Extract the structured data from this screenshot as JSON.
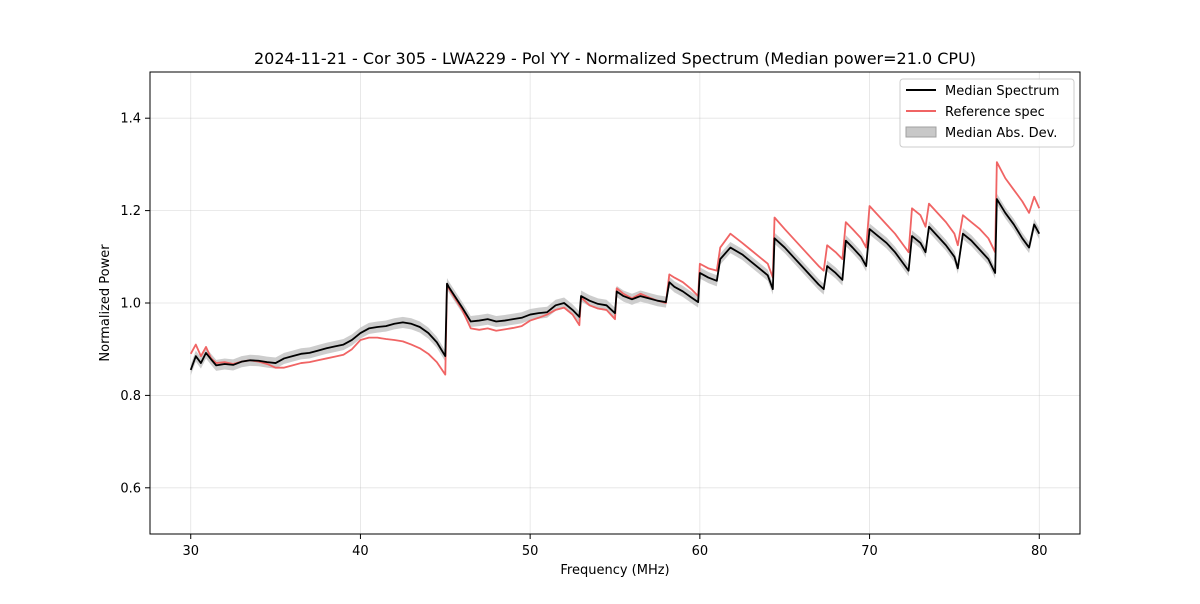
{
  "chart_data": {
    "type": "line",
    "title": "2024-11-21 - Cor 305 - LWA229 - Pol YY - Normalized Spectrum (Median power=21.0 CPU)",
    "xlabel": "Frequency (MHz)",
    "ylabel": "Normalized Power",
    "xlim": [
      27.6,
      82.4
    ],
    "ylim": [
      0.5,
      1.5
    ],
    "xticks": [
      30,
      40,
      50,
      60,
      70,
      80
    ],
    "xtick_labels": [
      "30",
      "40",
      "50",
      "60",
      "70",
      "80"
    ],
    "yticks": [
      0.6,
      0.8,
      1.0,
      1.2,
      1.4
    ],
    "ytick_labels": [
      "0.6",
      "0.8",
      "1.0",
      "1.2",
      "1.4"
    ],
    "grid": true,
    "legend_position": "top-right",
    "legend": [
      {
        "label": "Median Spectrum",
        "kind": "line",
        "color": "#000000"
      },
      {
        "label": "Reference spec",
        "kind": "line",
        "color": "#f06464"
      },
      {
        "label": "Median Abs. Dev.",
        "kind": "band",
        "color": "#c8c8c8"
      }
    ],
    "series": [
      {
        "name": "Median Spectrum",
        "color": "#000000",
        "x": [
          30.0,
          30.3,
          30.6,
          30.9,
          31.2,
          31.5,
          32.0,
          32.5,
          33.0,
          33.5,
          34.0,
          34.5,
          35.0,
          35.5,
          36.0,
          36.5,
          37.0,
          37.5,
          38.0,
          38.5,
          39.0,
          39.5,
          40.0,
          40.5,
          41.0,
          41.5,
          42.0,
          42.5,
          43.0,
          43.5,
          44.0,
          44.5,
          45.0,
          45.1,
          45.2,
          46.0,
          46.5,
          47.0,
          47.5,
          48.0,
          48.5,
          49.0,
          49.5,
          50.0,
          50.5,
          51.0,
          51.5,
          52.0,
          52.5,
          52.9,
          53.0,
          53.5,
          54.0,
          54.5,
          55.0,
          55.1,
          55.5,
          56.0,
          56.5,
          57.0,
          57.5,
          58.0,
          58.2,
          58.5,
          59.0,
          59.5,
          59.9,
          60.0,
          60.5,
          61.0,
          61.2,
          61.8,
          62.5,
          63.0,
          63.5,
          64.0,
          64.3,
          64.4,
          65.0,
          65.5,
          66.0,
          66.5,
          67.0,
          67.3,
          67.5,
          68.0,
          68.4,
          68.6,
          69.0,
          69.5,
          69.8,
          70.0,
          70.5,
          71.0,
          71.5,
          72.0,
          72.3,
          72.5,
          73.0,
          73.3,
          73.5,
          74.0,
          74.5,
          75.0,
          75.2,
          75.5,
          76.0,
          76.5,
          77.0,
          77.4,
          77.5,
          78.0,
          78.5,
          79.0,
          79.4,
          79.7,
          80.0
        ],
        "y": [
          0.855,
          0.885,
          0.87,
          0.892,
          0.878,
          0.865,
          0.868,
          0.866,
          0.873,
          0.876,
          0.875,
          0.872,
          0.87,
          0.88,
          0.885,
          0.89,
          0.892,
          0.897,
          0.902,
          0.906,
          0.91,
          0.92,
          0.935,
          0.945,
          0.948,
          0.95,
          0.955,
          0.958,
          0.955,
          0.948,
          0.935,
          0.915,
          0.885,
          1.042,
          1.035,
          0.99,
          0.96,
          0.962,
          0.965,
          0.96,
          0.962,
          0.965,
          0.968,
          0.975,
          0.978,
          0.98,
          0.995,
          1.0,
          0.985,
          0.97,
          1.015,
          1.005,
          0.998,
          0.995,
          0.978,
          1.025,
          1.015,
          1.008,
          1.015,
          1.01,
          1.005,
          1.002,
          1.045,
          1.035,
          1.025,
          1.012,
          1.002,
          1.065,
          1.055,
          1.048,
          1.095,
          1.12,
          1.105,
          1.09,
          1.075,
          1.06,
          1.03,
          1.14,
          1.12,
          1.1,
          1.08,
          1.06,
          1.04,
          1.03,
          1.08,
          1.065,
          1.05,
          1.135,
          1.12,
          1.1,
          1.08,
          1.16,
          1.145,
          1.13,
          1.11,
          1.085,
          1.07,
          1.145,
          1.13,
          1.11,
          1.165,
          1.145,
          1.125,
          1.1,
          1.075,
          1.15,
          1.135,
          1.115,
          1.095,
          1.065,
          1.225,
          1.195,
          1.17,
          1.14,
          1.12,
          1.17,
          1.15
        ]
      },
      {
        "name": "Reference spec",
        "color": "#f06464",
        "x": [
          30.0,
          30.3,
          30.6,
          30.9,
          31.2,
          31.5,
          32.0,
          32.5,
          33.0,
          33.5,
          34.0,
          34.5,
          35.0,
          35.5,
          36.0,
          36.5,
          37.0,
          37.5,
          38.0,
          38.5,
          39.0,
          39.5,
          40.0,
          40.5,
          41.0,
          41.5,
          42.0,
          42.5,
          43.0,
          43.5,
          44.0,
          44.5,
          45.0,
          45.1,
          45.2,
          46.0,
          46.5,
          47.0,
          47.5,
          48.0,
          48.5,
          49.0,
          49.5,
          50.0,
          50.5,
          51.0,
          51.5,
          52.0,
          52.5,
          52.9,
          53.0,
          53.5,
          54.0,
          54.5,
          55.0,
          55.1,
          55.5,
          56.0,
          56.5,
          57.0,
          57.5,
          58.0,
          58.2,
          58.5,
          59.0,
          59.5,
          59.9,
          60.0,
          60.5,
          61.0,
          61.2,
          61.8,
          62.5,
          63.0,
          63.5,
          64.0,
          64.3,
          64.4,
          65.0,
          65.5,
          66.0,
          66.5,
          67.0,
          67.3,
          67.5,
          68.0,
          68.4,
          68.6,
          69.0,
          69.5,
          69.8,
          70.0,
          70.5,
          71.0,
          71.5,
          72.0,
          72.3,
          72.5,
          73.0,
          73.3,
          73.5,
          74.0,
          74.5,
          75.0,
          75.2,
          75.5,
          76.0,
          76.5,
          77.0,
          77.4,
          77.5,
          78.0,
          78.5,
          79.0,
          79.4,
          79.7,
          80.0
        ],
        "y": [
          0.89,
          0.91,
          0.885,
          0.905,
          0.88,
          0.87,
          0.872,
          0.868,
          0.873,
          0.876,
          0.873,
          0.868,
          0.86,
          0.86,
          0.865,
          0.87,
          0.872,
          0.876,
          0.88,
          0.884,
          0.888,
          0.9,
          0.92,
          0.925,
          0.925,
          0.922,
          0.92,
          0.917,
          0.91,
          0.902,
          0.89,
          0.872,
          0.845,
          1.04,
          1.032,
          0.985,
          0.945,
          0.942,
          0.945,
          0.94,
          0.943,
          0.946,
          0.95,
          0.962,
          0.968,
          0.975,
          0.985,
          0.99,
          0.975,
          0.952,
          1.012,
          0.995,
          0.988,
          0.985,
          0.965,
          1.032,
          1.02,
          1.01,
          1.02,
          1.012,
          1.005,
          1.0,
          1.062,
          1.055,
          1.045,
          1.03,
          1.015,
          1.085,
          1.075,
          1.07,
          1.12,
          1.15,
          1.13,
          1.115,
          1.1,
          1.085,
          1.055,
          1.185,
          1.16,
          1.14,
          1.12,
          1.1,
          1.08,
          1.07,
          1.125,
          1.11,
          1.095,
          1.175,
          1.16,
          1.14,
          1.12,
          1.21,
          1.19,
          1.17,
          1.15,
          1.125,
          1.11,
          1.205,
          1.19,
          1.165,
          1.215,
          1.195,
          1.175,
          1.15,
          1.125,
          1.19,
          1.175,
          1.16,
          1.14,
          1.11,
          1.305,
          1.27,
          1.245,
          1.22,
          1.195,
          1.23,
          1.205
        ]
      }
    ],
    "mad_band": {
      "name": "Median Abs. Dev.",
      "half_width": 0.012
    }
  }
}
